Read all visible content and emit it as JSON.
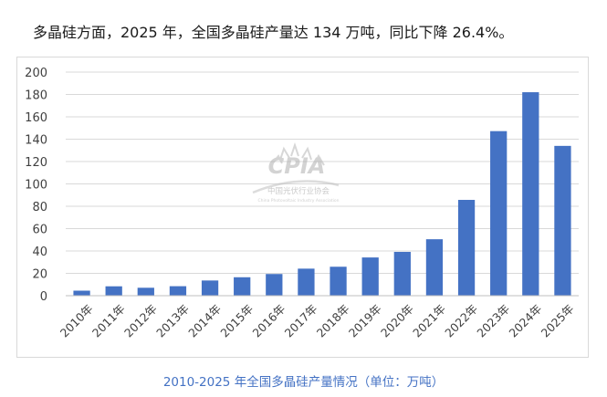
{
  "intro_text": "多晶硅方面，2025 年，全国多晶硅产量达 134 万吨，同比下降 26.4%。",
  "caption": "2010-2025 年全国多晶硅产量情况（单位：万吨）",
  "watermark": {
    "logo": "CPIA",
    "org_cn": "中国光伏行业协会",
    "org_en": "China Photovoltaic Industry Association"
  },
  "colors": {
    "bar": "#4472c4",
    "grid": "#d9d9d9",
    "axis_text": "#404040",
    "caption": "#4472c4"
  },
  "chart_data": {
    "type": "bar",
    "title": "",
    "xlabel": "",
    "ylabel": "",
    "ylim": [
      0,
      200
    ],
    "yticks": [
      0,
      20,
      40,
      60,
      80,
      100,
      120,
      140,
      160,
      180,
      200
    ],
    "grid": true,
    "categories": [
      "2010年",
      "2011年",
      "2012年",
      "2013年",
      "2014年",
      "2015年",
      "2016年",
      "2017年",
      "2018年",
      "2019年",
      "2020年",
      "2021年",
      "2022年",
      "2023年",
      "2024年",
      "2025年"
    ],
    "values": [
      4.5,
      8.4,
      7.1,
      8.5,
      13.6,
      16.5,
      19.4,
      24.2,
      25.9,
      34.2,
      39.2,
      50.5,
      85.7,
      147.2,
      182.0,
      134.0
    ]
  }
}
